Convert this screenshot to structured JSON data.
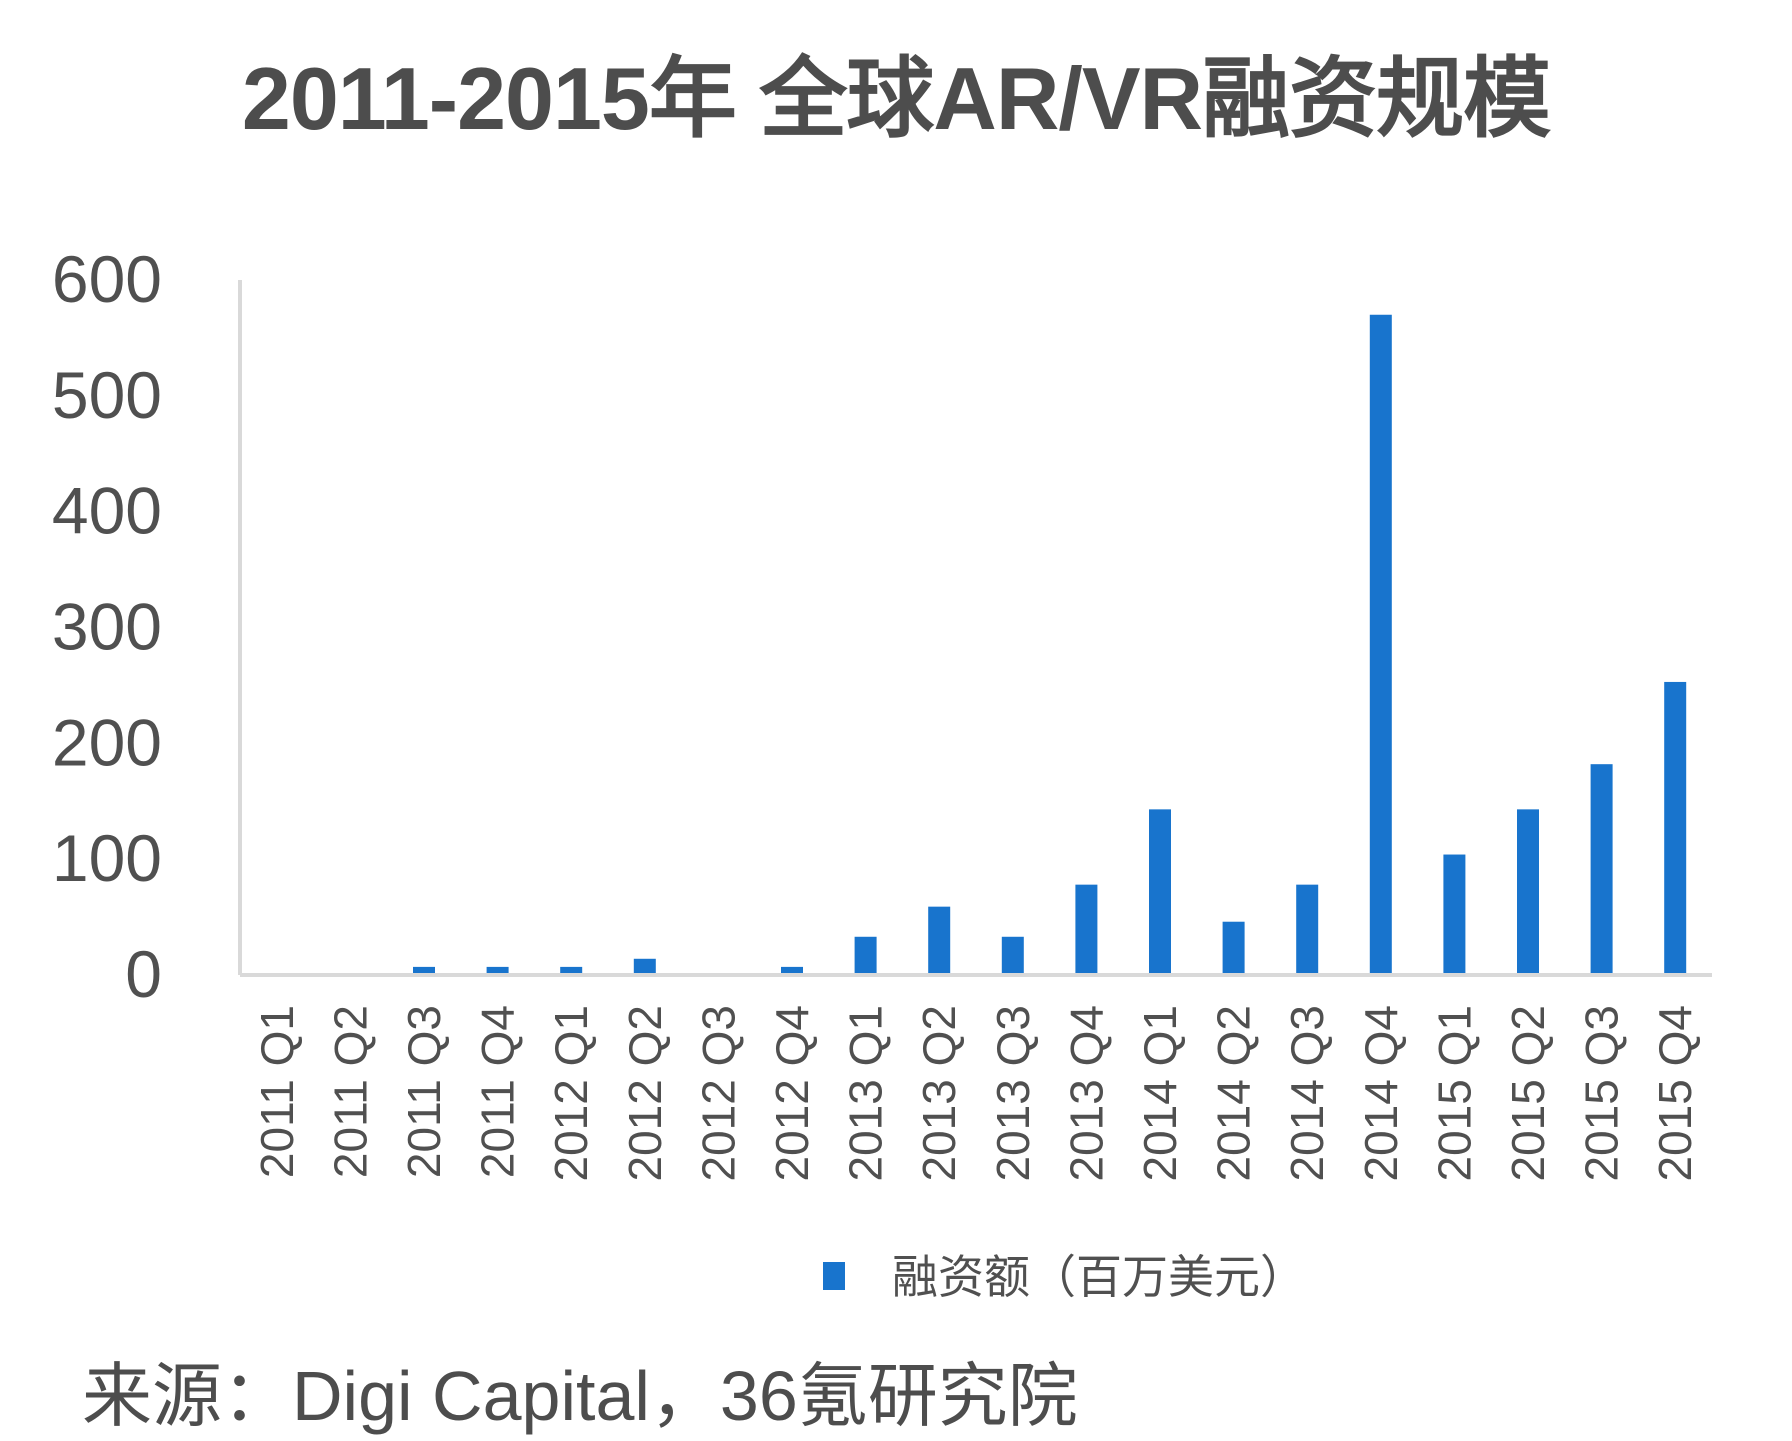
{
  "chart_data": {
    "type": "bar",
    "title": "2011-2015年 全球AR/VR融资规模",
    "categories": [
      "2011 Q1",
      "2011 Q2",
      "2011 Q3",
      "2011 Q4",
      "2012 Q1",
      "2012 Q2",
      "2012 Q3",
      "2012 Q4",
      "2013 Q1",
      "2013 Q2",
      "2013 Q3",
      "2013 Q4",
      "2014 Q1",
      "2014 Q2",
      "2014 Q3",
      "2014 Q4",
      "2015 Q1",
      "2015 Q2",
      "2015 Q3",
      "2015 Q4"
    ],
    "series": [
      {
        "name": "融资额（百万美元）",
        "color": "#1874cd",
        "values": [
          1,
          0,
          7,
          7,
          7,
          14,
          0,
          7,
          33,
          59,
          33,
          78,
          143,
          46,
          78,
          570,
          104,
          143,
          182,
          253
        ]
      }
    ],
    "yticks": [
      0,
      100,
      200,
      300,
      400,
      500,
      600
    ],
    "ylim": [
      0,
      600
    ],
    "legend_position": "bottom",
    "grid": false
  },
  "source": "来源：Digi Capital，36氪研究院"
}
